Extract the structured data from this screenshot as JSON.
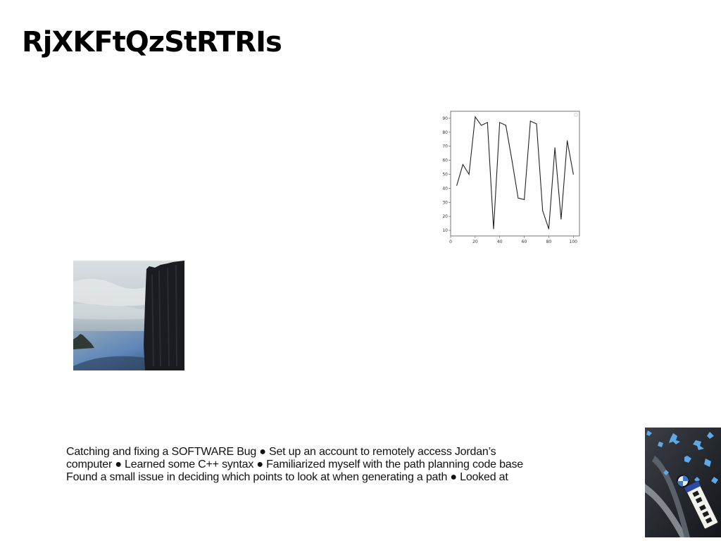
{
  "slide": {
    "title": "RjXKFtQzStRTRIs",
    "body_lines": [
      "Catching and fixing a SOFTWARE Bug ● Set up an account to remotely access Jordan’s",
      "computer ● Learned some C++ syntax ● Familiarized myself with the path planning code base",
      "Found a small issue in deciding which points to look at when generating a path ● Looked at"
    ]
  },
  "chart_data": {
    "type": "line",
    "x": [
      5,
      10,
      15,
      20,
      25,
      30,
      35,
      40,
      45,
      50,
      55,
      60,
      65,
      70,
      75,
      80,
      85,
      90,
      95,
      100
    ],
    "series": [
      {
        "values": [
          42,
          57,
          50,
          91,
          85,
          87,
          11,
          87,
          85,
          60,
          33,
          32,
          88,
          86,
          24,
          11,
          69,
          18,
          74,
          50
        ]
      }
    ],
    "xticks": [
      "0",
      "20",
      "40",
      "60",
      "80",
      "100"
    ],
    "yticks": [
      "10",
      "20",
      "30",
      "40",
      "50",
      "60",
      "70",
      "80",
      "90"
    ],
    "xlim": [
      0,
      105
    ],
    "ylim": [
      6,
      95
    ],
    "title": "",
    "xlabel": "",
    "ylabel": "",
    "line_color": "#222222",
    "grid": false
  }
}
